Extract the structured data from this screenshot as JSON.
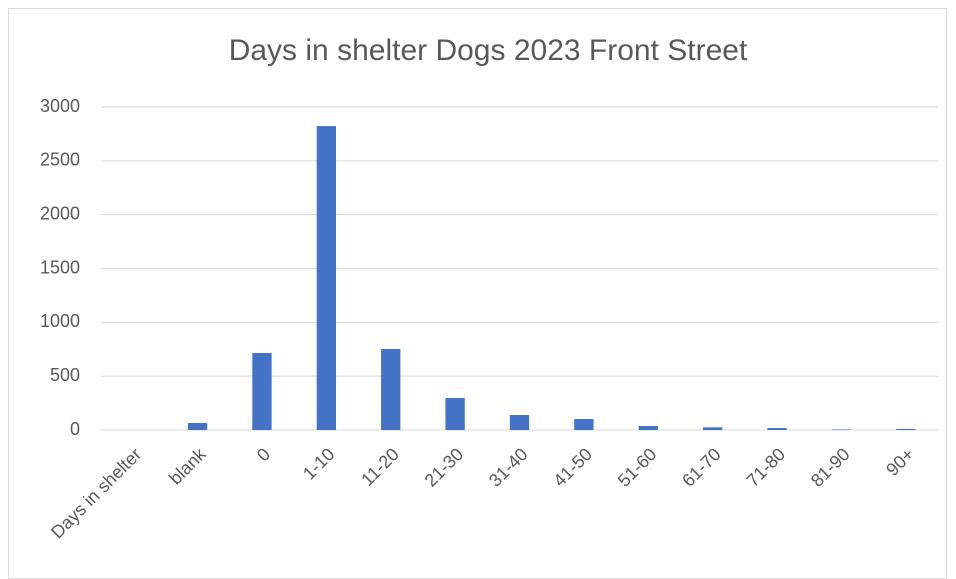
{
  "chart_data": {
    "type": "bar",
    "title": "Days in shelter Dogs 2023 Front Street",
    "categories": [
      "Days in shelter",
      "blank",
      "0",
      "1-10",
      "11-20",
      "21-30",
      "31-40",
      "41-50",
      "51-60",
      "61-70",
      "71-80",
      "81-90",
      "90+"
    ],
    "values": [
      0,
      65,
      715,
      2823,
      752,
      297,
      139,
      102,
      37,
      25,
      18,
      5,
      10
    ],
    "color": "#4472c4",
    "ylim": [
      0,
      3000
    ],
    "yticks": [
      0,
      500,
      1000,
      1500,
      2000,
      2500,
      3000
    ],
    "grid": true
  }
}
